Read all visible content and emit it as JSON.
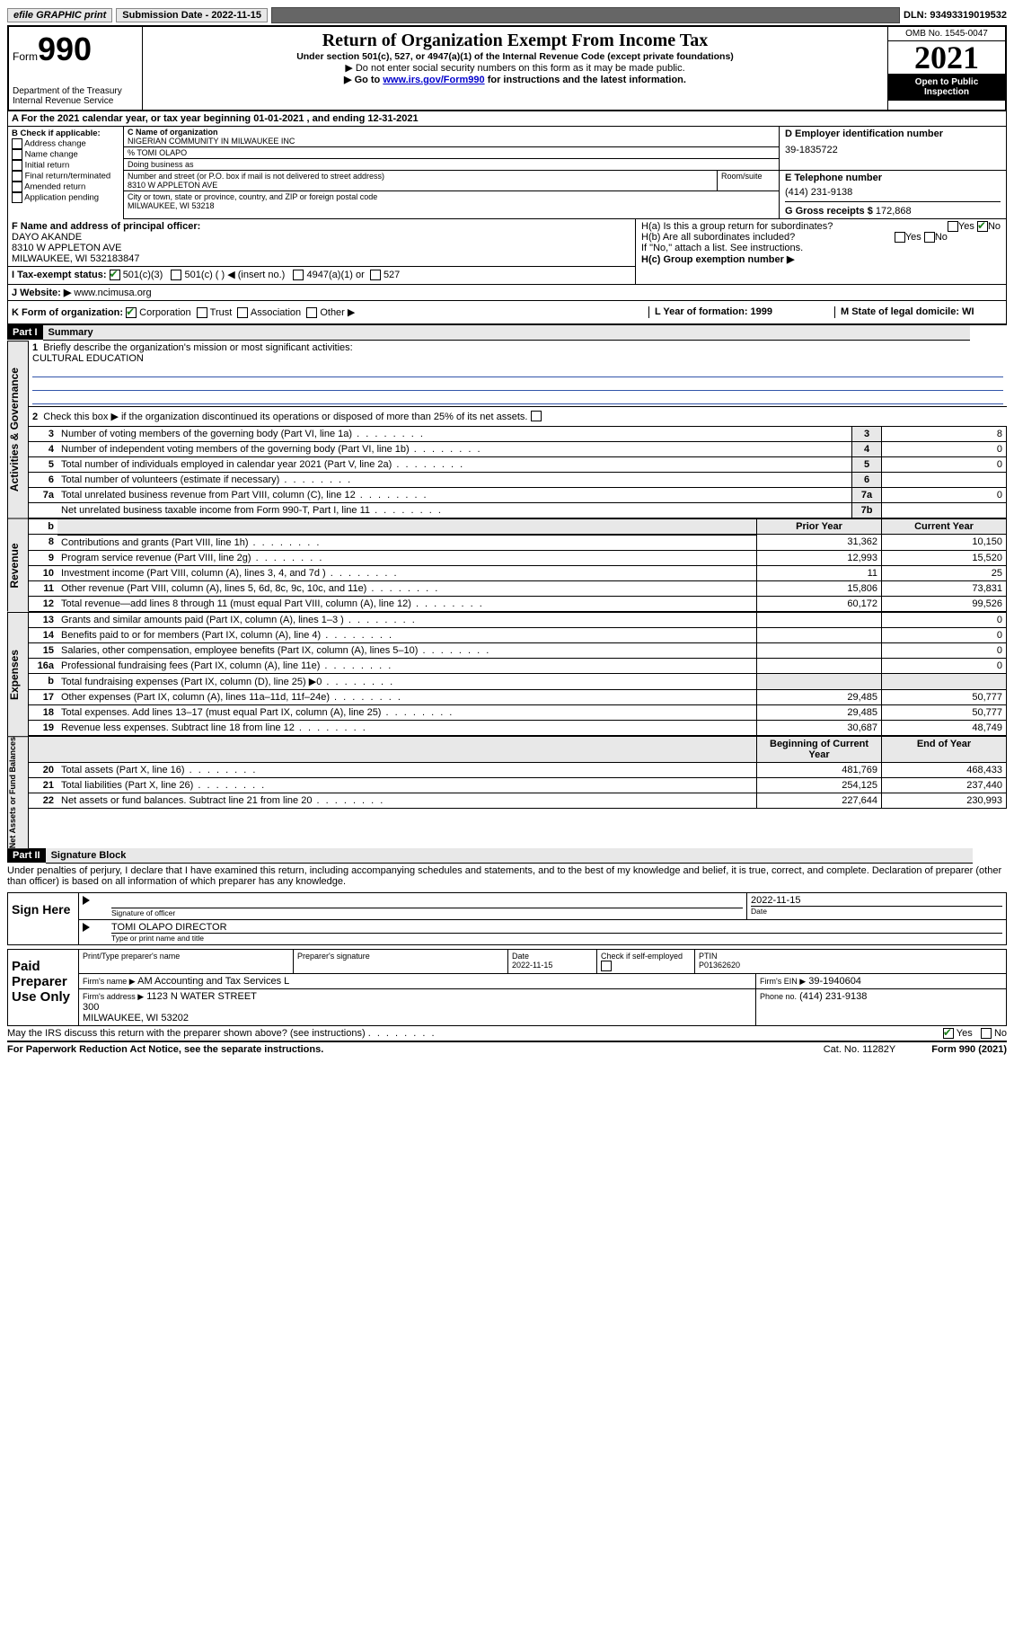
{
  "top": {
    "efile": "efile GRAPHIC print",
    "submission_label": "Submission Date - 2022-11-15",
    "dln": "DLN: 93493319019532"
  },
  "header": {
    "form_prefix": "Form",
    "form_number": "990",
    "dept": "Department of the Treasury\nInternal Revenue Service",
    "title": "Return of Organization Exempt From Income Tax",
    "sub1": "Under section 501(c), 527, or 4947(a)(1) of the Internal Revenue Code (except private foundations)",
    "sub2": "▶ Do not enter social security numbers on this form as it may be made public.",
    "sub3_pre": "▶ Go to ",
    "sub3_link": "www.irs.gov/Form990",
    "sub3_post": " for instructions and the latest information.",
    "omb": "OMB No. 1545-0047",
    "year": "2021",
    "open": "Open to Public Inspection"
  },
  "a": {
    "line": "A For the 2021 calendar year, or tax year beginning 01-01-2021     , and ending 12-31-2021"
  },
  "b": {
    "label": "B Check if applicable:",
    "opts": [
      "Address change",
      "Name change",
      "Initial return",
      "Final return/terminated",
      "Amended return",
      "Application pending"
    ]
  },
  "c": {
    "name_label": "C Name of organization",
    "name": "NIGERIAN COMMUNITY IN MILWAUKEE INC",
    "pct": "% TOMI OLAPO",
    "dba_label": "Doing business as",
    "addr_label": "Number and street (or P.O. box if mail is not delivered to street address)",
    "room_label": "Room/suite",
    "addr": "8310 W APPLETON AVE",
    "city_label": "City or town, state or province, country, and ZIP or foreign postal code",
    "city": "MILWAUKEE, WI  53218"
  },
  "d": {
    "label": "D Employer identification number",
    "val": "39-1835722"
  },
  "e": {
    "label": "E Telephone number",
    "val": "(414) 231-9138"
  },
  "g": {
    "label": "G Gross receipts $",
    "val": "172,868"
  },
  "f": {
    "label": "F  Name and address of principal officer:",
    "name": "DAYO AKANDE",
    "addr": "8310 W APPLETON AVE",
    "city": "MILWAUKEE, WI  532183847"
  },
  "h": {
    "a": "H(a)  Is this a group return for subordinates?",
    "b": "H(b)  Are all subordinates included?",
    "b_note": "If \"No,\" attach a list. See instructions.",
    "c": "H(c)  Group exemption number ▶",
    "yes": "Yes",
    "no": "No"
  },
  "i": {
    "label": "I      Tax-exempt status:",
    "o1": "501(c)(3)",
    "o2": "501(c) (  ) ◀ (insert no.)",
    "o3": "4947(a)(1) or",
    "o4": "527"
  },
  "j": {
    "label": "J     Website: ▶",
    "val": "www.ncimusa.org"
  },
  "k": {
    "label": "K Form of organization:",
    "o1": "Corporation",
    "o2": "Trust",
    "o3": "Association",
    "o4": "Other ▶"
  },
  "l": {
    "label": "L Year of formation: 1999"
  },
  "m": {
    "label": "M State of legal domicile: WI"
  },
  "part1": {
    "header": "Part I",
    "title": "Summary",
    "q1": "Briefly describe the organization's mission or most significant activities:",
    "mission": "CULTURAL EDUCATION",
    "q2": "Check this box ▶       if the organization discontinued its operations or disposed of more than 25% of its net assets.",
    "tabs": {
      "gov": "Activities & Governance",
      "rev": "Revenue",
      "exp": "Expenses",
      "net": "Net Assets or Fund Balances"
    },
    "col_prior": "Prior Year",
    "col_curr": "Current Year",
    "col_beg": "Beginning of Current Year",
    "col_end": "End of Year",
    "rows_gov": [
      {
        "n": "3",
        "d": "Number of voting members of the governing body (Part VI, line 1a)",
        "box": "3",
        "v": "8"
      },
      {
        "n": "4",
        "d": "Number of independent voting members of the governing body (Part VI, line 1b)",
        "box": "4",
        "v": "0"
      },
      {
        "n": "5",
        "d": "Total number of individuals employed in calendar year 2021 (Part V, line 2a)",
        "box": "5",
        "v": "0"
      },
      {
        "n": "6",
        "d": "Total number of volunteers (estimate if necessary)",
        "box": "6",
        "v": ""
      },
      {
        "n": "7a",
        "d": "Total unrelated business revenue from Part VIII, column (C), line 12",
        "box": "7a",
        "v": "0"
      },
      {
        "n": "",
        "d": "Net unrelated business taxable income from Form 990-T, Part I, line 11",
        "box": "7b",
        "v": ""
      }
    ],
    "rows_rev": [
      {
        "n": "8",
        "d": "Contributions and grants (Part VIII, line 1h)",
        "p": "31,362",
        "c": "10,150"
      },
      {
        "n": "9",
        "d": "Program service revenue (Part VIII, line 2g)",
        "p": "12,993",
        "c": "15,520"
      },
      {
        "n": "10",
        "d": "Investment income (Part VIII, column (A), lines 3, 4, and 7d )",
        "p": "11",
        "c": "25"
      },
      {
        "n": "11",
        "d": "Other revenue (Part VIII, column (A), lines 5, 6d, 8c, 9c, 10c, and 11e)",
        "p": "15,806",
        "c": "73,831"
      },
      {
        "n": "12",
        "d": "Total revenue—add lines 8 through 11 (must equal Part VIII, column (A), line 12)",
        "p": "60,172",
        "c": "99,526"
      }
    ],
    "rows_exp": [
      {
        "n": "13",
        "d": "Grants and similar amounts paid (Part IX, column (A), lines 1–3 )",
        "p": "",
        "c": "0"
      },
      {
        "n": "14",
        "d": "Benefits paid to or for members (Part IX, column (A), line 4)",
        "p": "",
        "c": "0"
      },
      {
        "n": "15",
        "d": "Salaries, other compensation, employee benefits (Part IX, column (A), lines 5–10)",
        "p": "",
        "c": "0"
      },
      {
        "n": "16a",
        "d": "Professional fundraising fees (Part IX, column (A), line 11e)",
        "p": "",
        "c": "0"
      },
      {
        "n": "b",
        "d": "Total fundraising expenses (Part IX, column (D), line 25) ▶0",
        "p": "shade",
        "c": "shade"
      },
      {
        "n": "17",
        "d": "Other expenses (Part IX, column (A), lines 11a–11d, 11f–24e)",
        "p": "29,485",
        "c": "50,777"
      },
      {
        "n": "18",
        "d": "Total expenses. Add lines 13–17 (must equal Part IX, column (A), line 25)",
        "p": "29,485",
        "c": "50,777"
      },
      {
        "n": "19",
        "d": "Revenue less expenses. Subtract line 18 from line 12",
        "p": "30,687",
        "c": "48,749"
      }
    ],
    "rows_net": [
      {
        "n": "20",
        "d": "Total assets (Part X, line 16)",
        "p": "481,769",
        "c": "468,433"
      },
      {
        "n": "21",
        "d": "Total liabilities (Part X, line 26)",
        "p": "254,125",
        "c": "237,440"
      },
      {
        "n": "22",
        "d": "Net assets or fund balances. Subtract line 21 from line 20",
        "p": "227,644",
        "c": "230,993"
      }
    ]
  },
  "part2": {
    "header": "Part II",
    "title": "Signature Block",
    "decl": "Under penalties of perjury, I declare that I have examined this return, including accompanying schedules and statements, and to the best of my knowledge and belief, it is true, correct, and complete. Declaration of preparer (other than officer) is based on all information of which preparer has any knowledge."
  },
  "sign": {
    "label": "Sign Here",
    "sig": "Signature of officer",
    "date": "2022-11-15",
    "date_label": "Date",
    "name": "TOMI OLAPO DIRECTOR",
    "type": "Type or print name and title"
  },
  "prep": {
    "label": "Paid Preparer Use Only",
    "h1": "Print/Type preparer's name",
    "h2": "Preparer's signature",
    "h3": "Date",
    "date": "2022-11-15",
    "h4": "Check        if self-employed",
    "h5": "PTIN",
    "ptin": "P01362620",
    "firm_label": "Firm's name     ▶",
    "firm": "AM Accounting and Tax Services L",
    "ein_label": "Firm's EIN ▶",
    "ein": "39-1940604",
    "addr_label": "Firm's address ▶",
    "addr": "1123 N WATER STREET\n300\nMILWAUKEE, WI 53202",
    "phone_label": "Phone no.",
    "phone": "(414) 231-9138"
  },
  "discuss": {
    "q": "May the IRS discuss this return with the preparer shown above? (see instructions)",
    "yes": "Yes",
    "no": "No"
  },
  "footer": {
    "l": "For Paperwork Reduction Act Notice, see the separate instructions.",
    "m": "Cat. No. 11282Y",
    "r": "Form 990 (2021)"
  }
}
